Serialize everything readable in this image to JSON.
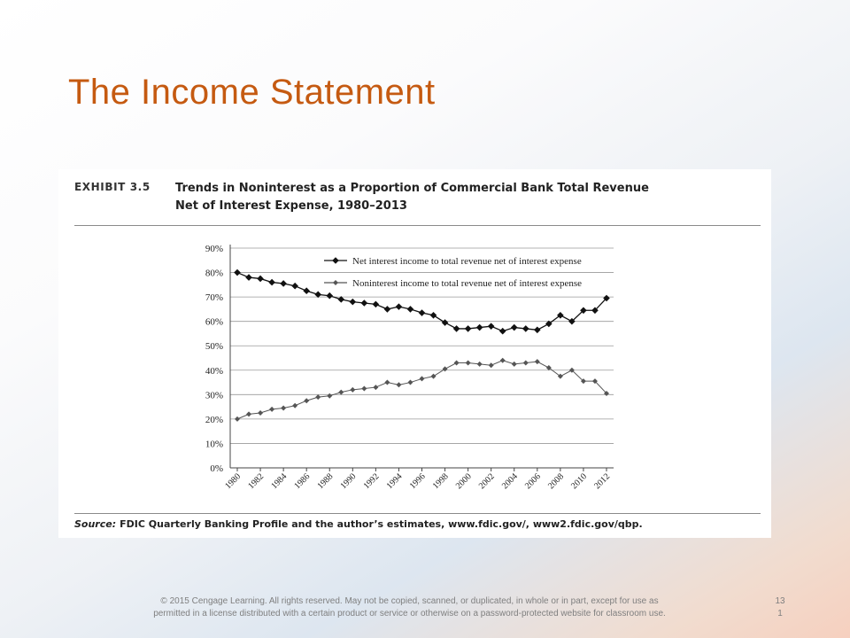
{
  "slide": {
    "title": "The Income Statement",
    "footer_line1": "© 2015 Cengage Learning. All rights reserved. May not be copied, scanned, or duplicated, in whole or in part, except for use as",
    "footer_line2": "permitted in a license distributed with a certain product or service or otherwise on a password-protected website for classroom use.",
    "page_line1": "13",
    "page_line2": "1"
  },
  "exhibit": {
    "label": "EXHIBIT 3.5",
    "title_line1": "Trends in Noninterest as a Proportion of Commercial Bank Total Revenue",
    "title_line2": "Net of Interest Expense, 1980–2013",
    "source_label": "Source:",
    "source_text": "FDIC Quarterly Banking Profile and the author’s estimates, www.fdic.gov/, www2.fdic.gov/qbp."
  },
  "chart_data": {
    "type": "line",
    "x": [
      1980,
      1981,
      1982,
      1983,
      1984,
      1985,
      1986,
      1987,
      1988,
      1989,
      1990,
      1991,
      1992,
      1993,
      1994,
      1995,
      1996,
      1997,
      1998,
      1999,
      2000,
      2001,
      2002,
      2003,
      2004,
      2005,
      2006,
      2007,
      2008,
      2009,
      2010,
      2011,
      2012
    ],
    "x_tick_labels": [
      "1980",
      "1982",
      "1984",
      "1986",
      "1988",
      "1990",
      "1992",
      "1994",
      "1996",
      "1998",
      "2000",
      "2002",
      "2004",
      "2006",
      "2008",
      "2010",
      "2012"
    ],
    "y_tick_labels": [
      "0%",
      "10%",
      "20%",
      "30%",
      "40%",
      "50%",
      "60%",
      "70%",
      "80%",
      "90%"
    ],
    "ylim": [
      0,
      90
    ],
    "grid": "horizontal",
    "legend_position": "top",
    "series": [
      {
        "name": "Net interest income to total revenue net of interest expense",
        "marker": "diamond-large",
        "color": "#111111",
        "values": [
          80,
          78,
          77.5,
          76,
          75.5,
          74.5,
          72.5,
          71,
          70.5,
          69,
          68,
          67.5,
          67,
          65,
          66,
          65,
          63.5,
          62.5,
          59.5,
          57,
          57,
          57.5,
          58,
          56,
          57.5,
          57,
          56.5,
          59,
          62.5,
          60,
          64.5,
          64.5,
          69.5
        ]
      },
      {
        "name": "Noninterest income to total revenue net of interest expense",
        "marker": "diamond-small",
        "color": "#555555",
        "values": [
          20,
          22,
          22.5,
          24,
          24.5,
          25.5,
          27.5,
          29,
          29.5,
          31,
          32,
          32.5,
          33,
          35,
          34,
          35,
          36.5,
          37.5,
          40.5,
          43,
          43,
          42.5,
          42,
          44,
          42.5,
          43,
          43.5,
          41,
          37.5,
          40,
          35.5,
          35.5,
          30.5
        ]
      }
    ]
  }
}
